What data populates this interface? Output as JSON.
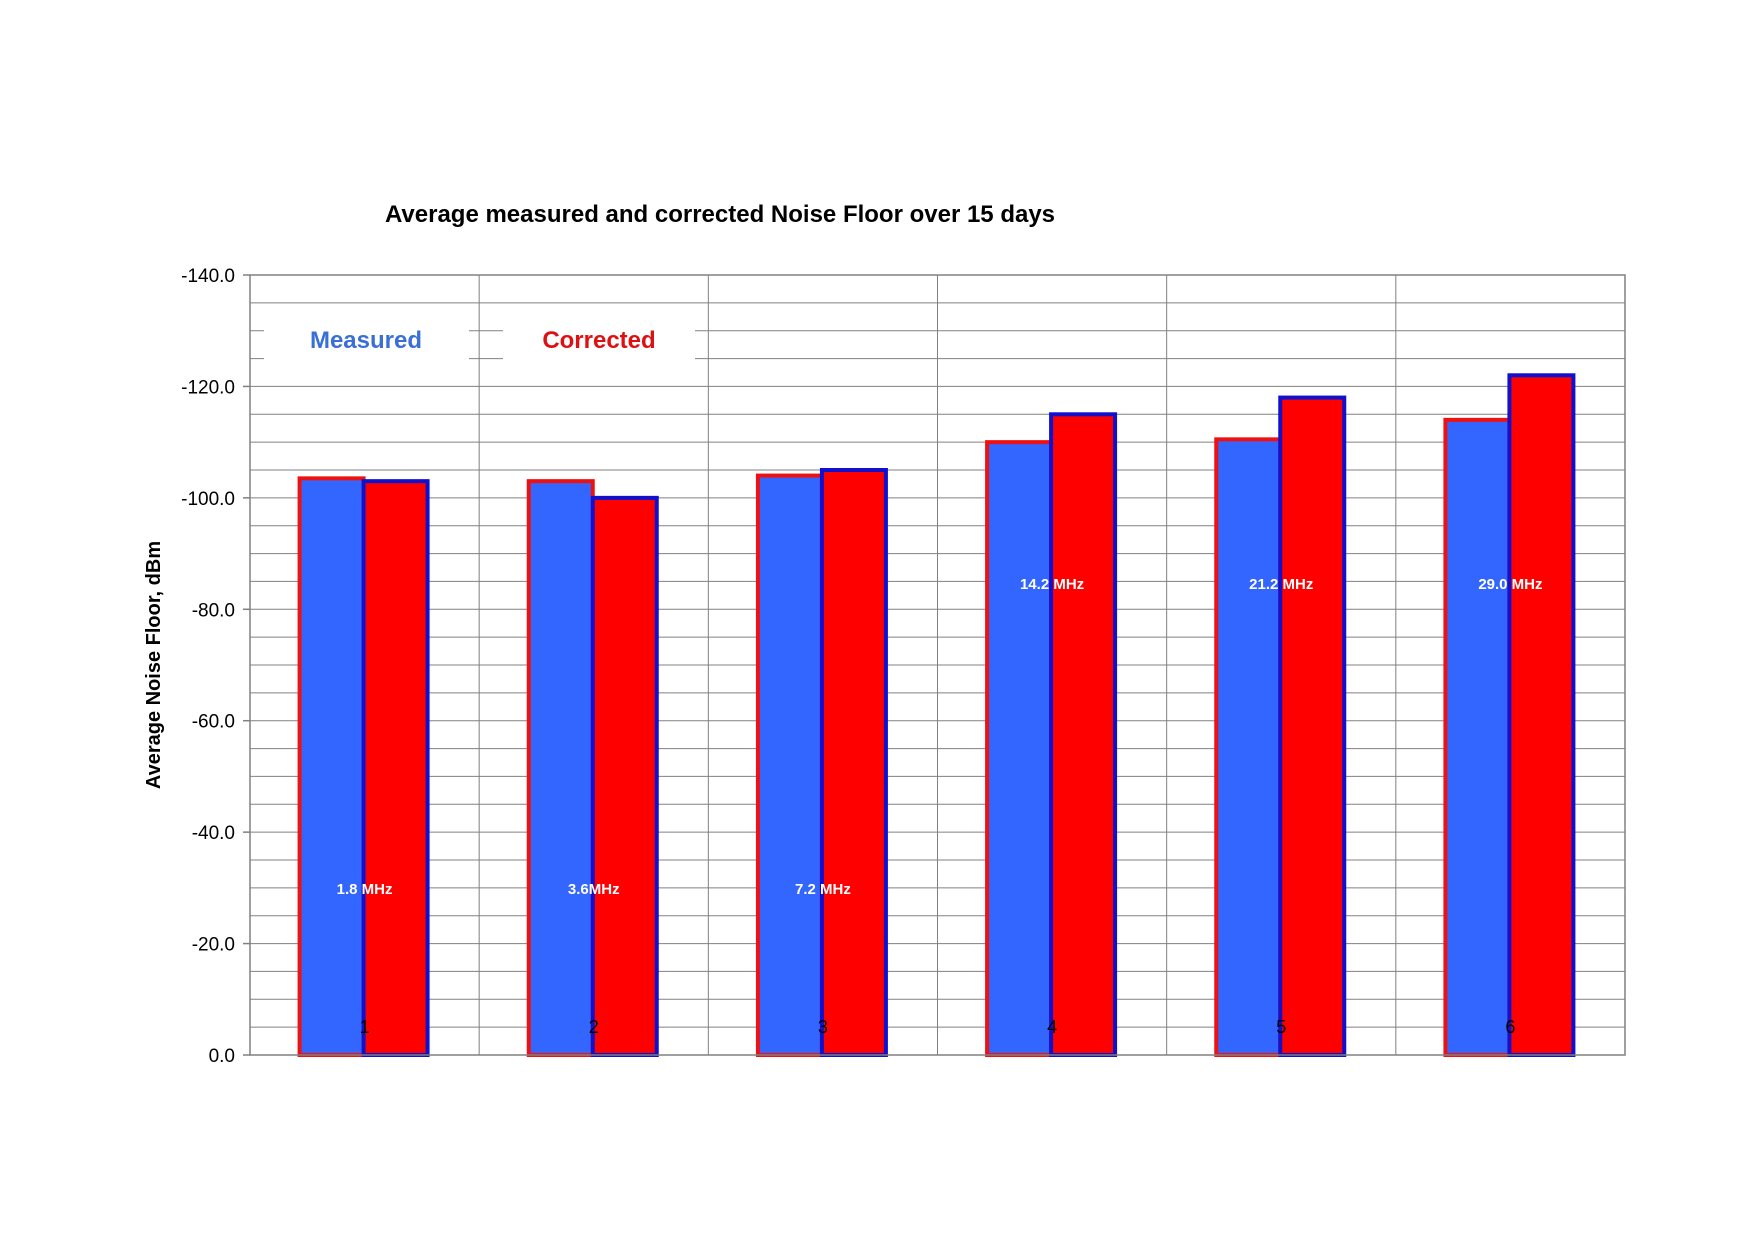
{
  "chart_data": {
    "type": "bar",
    "title": "Average measured and corrected Noise Floor over 15 days",
    "xlabel": "",
    "ylabel": "Average Noise Floor, dBm",
    "ylim": [
      0,
      -140
    ],
    "y_axis_reversed": true,
    "yticks": [
      "0.0",
      "-20.0",
      "-40.0",
      "-60.0",
      "-80.0",
      "-100.0",
      "-120.0",
      "-140.0"
    ],
    "ytick_values": [
      0,
      -20,
      -40,
      -60,
      -80,
      -100,
      -120,
      -140
    ],
    "grid": true,
    "categories": [
      "1",
      "2",
      "3",
      "4",
      "5",
      "6"
    ],
    "frequency_labels": [
      "1.8 MHz",
      "3.6MHz",
      "7.2 MHz",
      "14.2 MHz",
      "21.2 MHz",
      "29.0 MHz"
    ],
    "series": [
      {
        "name": "Measured",
        "values": [
          -103.5,
          -103,
          -104,
          -110,
          -110.5,
          -114
        ],
        "fill_color": "#3366ff",
        "border_color": "#ee1111"
      },
      {
        "name": "Corrected",
        "values": [
          -103,
          -100,
          -105,
          -115,
          -118,
          -122
        ],
        "fill_color": "#ff0000",
        "border_color": "#1111cc"
      }
    ],
    "legend": {
      "placement": "top-left",
      "items": [
        {
          "label": "Measured",
          "color": "#3a6fd8"
        },
        {
          "label": "Corrected",
          "color": "#dd1111"
        }
      ]
    }
  }
}
